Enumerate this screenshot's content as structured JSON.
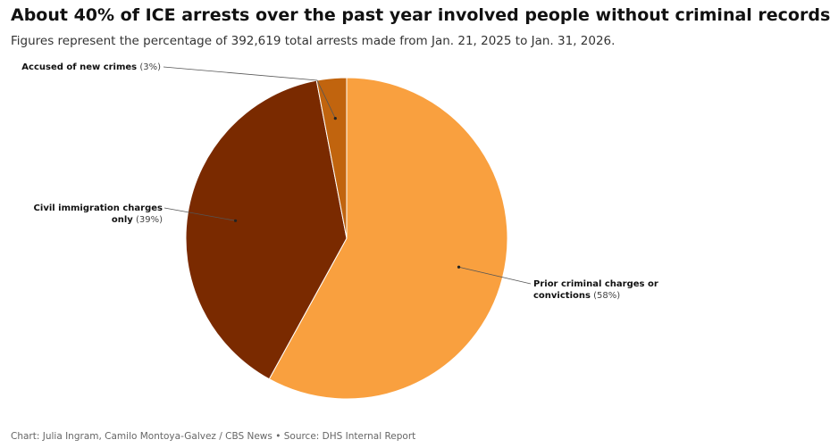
{
  "chart_data": {
    "type": "pie",
    "title": "About 40% of ICE arrests over the past year involved people without criminal records",
    "subtitle": "Figures represent the percentage of 392,619 total arrests made from Jan. 21, 2025 to Jan. 31, 2026.",
    "categories": [
      "Prior criminal charges or convictions",
      "Civil immigration charges only",
      "Accused of new crimes"
    ],
    "values": [
      58,
      39,
      3
    ],
    "value_labels": [
      "(58%)",
      "(39%)",
      "(3%)"
    ],
    "colors": [
      "#f9a03f",
      "#7a2a00",
      "#c1640e"
    ],
    "source": "Chart: Julia Ingram, Camilo Montoya-Galvez / CBS News • Source: DHS Internal Report"
  }
}
